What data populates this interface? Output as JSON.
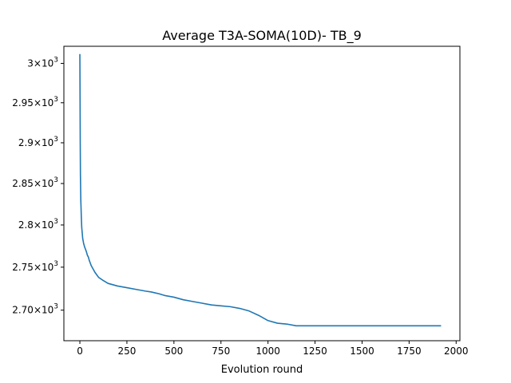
{
  "chart_data": {
    "type": "line",
    "title": "Average T3A-SOMA(10D)- TB_9",
    "xlabel": "Evolution round",
    "ylabel": "",
    "xlim": [
      -85,
      2020
    ],
    "ylim": [
      2665,
      3022
    ],
    "y_scale": "log",
    "grid": false,
    "x_ticks": [
      {
        "value": 0,
        "label": "0"
      },
      {
        "value": 250,
        "label": "250"
      },
      {
        "value": 500,
        "label": "500"
      },
      {
        "value": 750,
        "label": "750"
      },
      {
        "value": 1000,
        "label": "1000"
      },
      {
        "value": 1250,
        "label": "1250"
      },
      {
        "value": 1500,
        "label": "1500"
      },
      {
        "value": 1750,
        "label": "1750"
      },
      {
        "value": 2000,
        "label": "2000"
      }
    ],
    "y_ticks": [
      {
        "value": 2700,
        "mantissa": "2.70",
        "base": "10",
        "exp": "3"
      },
      {
        "value": 2750,
        "mantissa": "2.75",
        "base": "10",
        "exp": "3"
      },
      {
        "value": 2800,
        "mantissa": "2.8",
        "base": "10",
        "exp": "3"
      },
      {
        "value": 2850,
        "mantissa": "2.85",
        "base": "10",
        "exp": "3"
      },
      {
        "value": 2900,
        "mantissa": "2.9",
        "base": "10",
        "exp": "3"
      },
      {
        "value": 2950,
        "mantissa": "2.95",
        "base": "10",
        "exp": "3"
      },
      {
        "value": 3000,
        "mantissa": "3",
        "base": "10",
        "exp": "3"
      }
    ],
    "series": [
      {
        "color": "#1f77b4",
        "x": [
          0,
          1,
          2,
          3,
          5,
          8,
          10,
          15,
          20,
          25,
          30,
          35,
          40,
          45,
          50,
          55,
          60,
          70,
          80,
          90,
          100,
          120,
          150,
          200,
          250,
          300,
          350,
          380,
          400,
          420,
          450,
          500,
          550,
          600,
          650,
          700,
          750,
          800,
          850,
          900,
          950,
          1000,
          1050,
          1100,
          1150,
          1200,
          1300,
          1400,
          1500,
          1600,
          1700,
          1800,
          1920
        ],
        "y": [
          3012,
          2960,
          2900,
          2860,
          2830,
          2808,
          2797,
          2784,
          2778,
          2774,
          2771,
          2768,
          2764,
          2762,
          2758,
          2755,
          2752,
          2748,
          2744,
          2741,
          2738,
          2735,
          2731,
          2728,
          2726,
          2724,
          2722,
          2721,
          2720,
          2719,
          2717,
          2715,
          2712,
          2710,
          2708,
          2706,
          2705,
          2704,
          2702,
          2699,
          2694,
          2688,
          2685,
          2684,
          2682,
          2682,
          2682,
          2682,
          2682,
          2682,
          2682,
          2682,
          2682
        ]
      }
    ]
  }
}
